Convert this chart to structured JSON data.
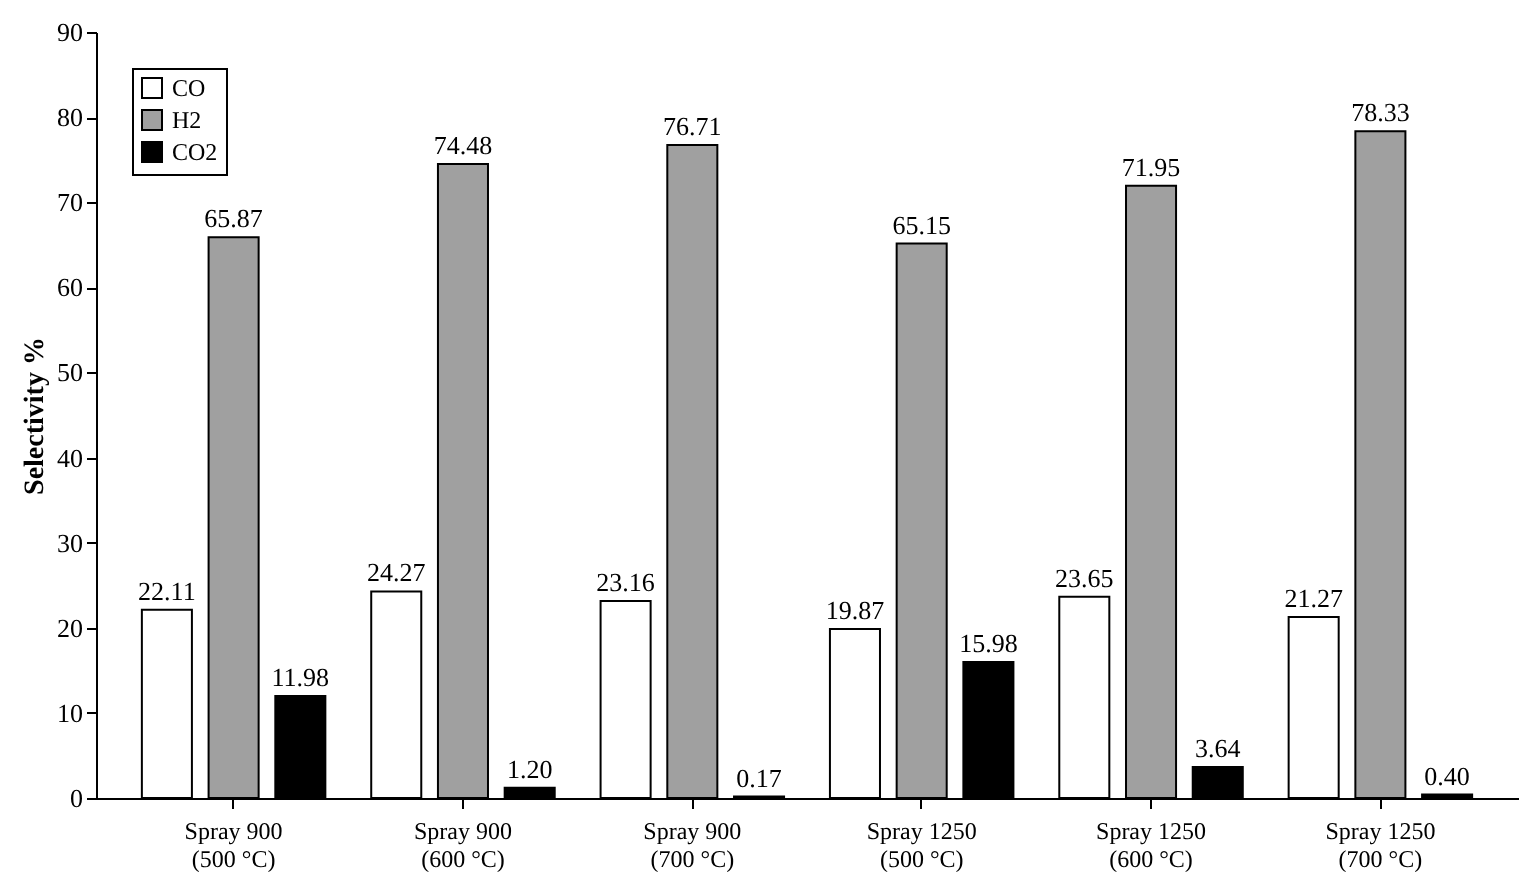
{
  "chart_data": {
    "type": "bar",
    "ylabel": "Selectivity %",
    "categories": [
      "Spray 900\n(500 °C)",
      "Spray 900\n(600 °C)",
      "Spray 900\n(700 °C)",
      "Spray 1250\n(500 °C)",
      "Spray 1250\n(600 °C)",
      "Spray 1250\n(700 °C)"
    ],
    "series": [
      {
        "name": "CO",
        "color": "#ffffff",
        "values": [
          22.11,
          24.27,
          23.16,
          19.87,
          23.65,
          21.27
        ],
        "value_labels": [
          "22.11",
          "24.27",
          "23.16",
          "19.87",
          "23.65",
          "21.27"
        ]
      },
      {
        "name": "H2",
        "color": "#a0a0a0",
        "values": [
          65.87,
          74.48,
          76.71,
          65.15,
          71.95,
          78.33
        ],
        "value_labels": [
          "65.87",
          "74.48",
          "76.71",
          "65.15",
          "71.95",
          "78.33"
        ]
      },
      {
        "name": "CO2",
        "color": "#000000",
        "values": [
          11.98,
          1.2,
          0.17,
          15.98,
          3.64,
          0.4
        ],
        "value_labels": [
          "11.98",
          "1.20",
          "0.17",
          "15.98",
          "3.64",
          "0.40"
        ]
      }
    ],
    "ylim": [
      0,
      90
    ],
    "yticks": [
      0,
      10,
      20,
      30,
      40,
      50,
      60,
      70,
      80,
      90
    ],
    "grid": false,
    "legend": "top left"
  }
}
